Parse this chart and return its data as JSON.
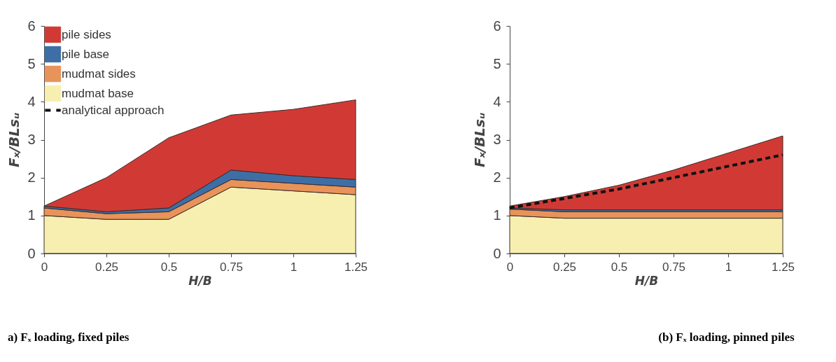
{
  "chart_data": [
    {
      "type": "area",
      "title": "a) Fₓ loading, fixed piles",
      "xlabel": "H/B",
      "ylabel": "Fₓ/BLsᵤ",
      "stacked": true,
      "x": [
        0,
        0.25,
        0.5,
        0.75,
        1,
        1.25
      ],
      "xlim": [
        0,
        1.25
      ],
      "xticks": [
        0,
        0.25,
        0.5,
        0.75,
        1,
        1.25
      ],
      "ylim": [
        0,
        6
      ],
      "yticks": [
        0,
        1,
        2,
        3,
        4,
        5,
        6
      ],
      "grid": false,
      "legend": "top left",
      "series": [
        {
          "name": "mudmat base",
          "color": "#f6efb0",
          "values": [
            1.0,
            0.9,
            0.9,
            1.75,
            1.65,
            1.55
          ]
        },
        {
          "name": "mudmat sides",
          "color": "#e8935a",
          "values": [
            0.2,
            0.15,
            0.2,
            0.2,
            0.2,
            0.2
          ]
        },
        {
          "name": "pile base",
          "color": "#3d6fa6",
          "values": [
            0.05,
            0.05,
            0.1,
            0.25,
            0.2,
            0.2
          ]
        },
        {
          "name": "pile sides",
          "color": "#d13a34",
          "values": [
            0,
            0.9,
            1.85,
            1.45,
            1.75,
            2.1
          ]
        },
        {
          "name": "analytical approach",
          "type": "line",
          "line_style": "dashed",
          "color": "#111111",
          "values": [
            null,
            null,
            null,
            null,
            null,
            null
          ]
        }
      ]
    },
    {
      "type": "area",
      "title": "(b) Fₓ loading, pinned piles",
      "xlabel": "H/B",
      "ylabel": "Fₓ/BLsᵤ",
      "stacked": true,
      "x": [
        0,
        0.25,
        0.5,
        0.75,
        1,
        1.25
      ],
      "xlim": [
        0,
        1.25
      ],
      "xticks": [
        0,
        0.25,
        0.5,
        0.75,
        1,
        1.25
      ],
      "ylim": [
        0,
        6
      ],
      "yticks": [
        0,
        1,
        2,
        3,
        4,
        5,
        6
      ],
      "grid": false,
      "legend": false,
      "series": [
        {
          "color": "#f6efb0",
          "values": [
            1.0,
            0.93,
            0.93,
            0.93,
            0.93,
            0.93
          ]
        },
        {
          "color": "#e8935a",
          "values": [
            0.17,
            0.17,
            0.17,
            0.17,
            0.17,
            0.17
          ]
        },
        {
          "color": "#3d6fa6",
          "values": [
            0.03,
            0.05,
            0.05,
            0.05,
            0.05,
            0.05
          ]
        },
        {
          "color": "#d13a34",
          "values": [
            0.05,
            0.35,
            0.65,
            1.05,
            1.5,
            1.95
          ]
        },
        {
          "type": "line",
          "line_style": "dashed",
          "color": "#111111",
          "values": [
            1.2,
            1.45,
            1.7,
            2.0,
            2.3,
            2.6
          ]
        }
      ]
    }
  ]
}
